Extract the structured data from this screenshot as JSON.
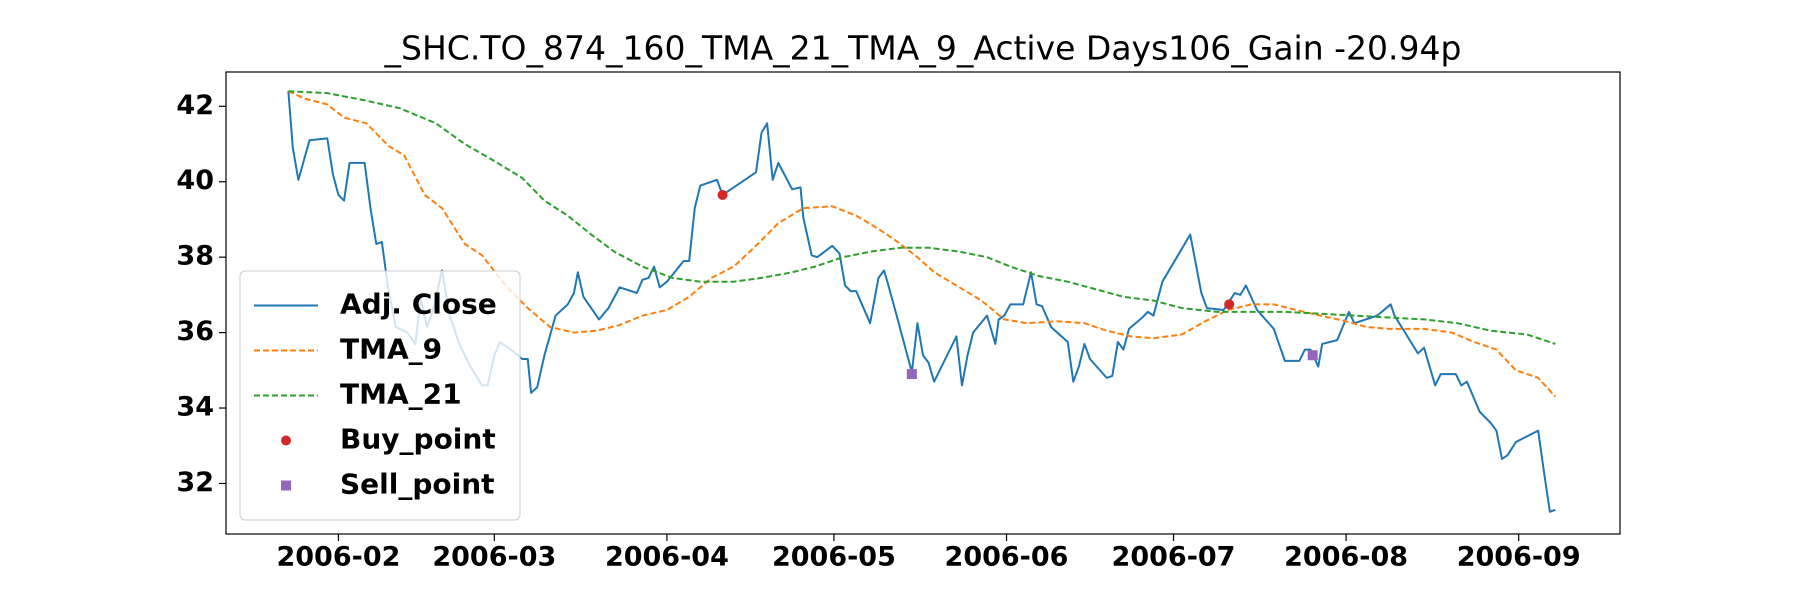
{
  "chart_data": {
    "type": "line",
    "title": "_SHC.TO_874_160_TMA_21_TMA_9_Active Days106_Gain -20.94p",
    "xlim": [
      10.8,
      261.2
    ],
    "ylim": [
      30.66,
      42.91
    ],
    "xticks": [
      {
        "value": 31,
        "label": "2006-02"
      },
      {
        "value": 59,
        "label": "2006-03"
      },
      {
        "value": 90,
        "label": "2006-04"
      },
      {
        "value": 120,
        "label": "2006-05"
      },
      {
        "value": 151,
        "label": "2006-06"
      },
      {
        "value": 181,
        "label": "2006-07"
      },
      {
        "value": 212,
        "label": "2006-08"
      },
      {
        "value": 243,
        "label": "2006-09"
      }
    ],
    "yticks": [
      32,
      34,
      36,
      38,
      40,
      42
    ],
    "grid": false,
    "legend_loc": "lower left",
    "series": [
      {
        "name": "Adj. Close",
        "color": "#1f77b4",
        "style": "solid",
        "x": [
          22,
          22.8,
          23.8,
          25.8,
          29,
          30,
          31,
          32,
          33,
          35.7,
          36.8,
          37.8,
          38.8,
          39.9,
          41.3,
          43.4,
          44.8,
          45.8,
          46.9,
          48,
          49.6,
          51,
          52.7,
          54.7,
          56.8,
          57.8,
          59,
          60,
          62,
          64,
          65,
          65.6,
          66.7,
          68,
          70,
          72.2,
          73.3,
          74,
          75,
          76.4,
          77.8,
          79.5,
          81.5,
          84.6,
          85.6,
          86.7,
          87.7,
          88.7,
          90,
          93,
          94,
          95,
          96,
          99,
          100,
          106,
          107,
          108,
          109,
          110,
          112.5,
          114,
          114.5,
          116,
          117,
          119.7,
          121,
          122,
          123,
          124,
          126.5,
          128,
          129,
          129.6,
          131,
          134,
          135,
          136,
          137,
          138,
          142,
          143,
          144,
          145,
          147.5,
          149,
          149.6,
          150.6,
          151.7,
          154,
          155.4,
          156.4,
          157.4,
          159,
          162,
          163,
          164,
          165,
          166,
          169,
          170,
          171,
          172,
          173,
          175.4,
          176.4,
          177.4,
          179,
          184,
          186,
          187,
          190,
          192,
          193,
          194,
          196,
          199,
          201,
          203.6,
          204.6,
          205.6,
          207,
          207.7,
          210.4,
          212.5,
          213.5,
          217.6,
          220,
          220.7,
          224.9,
          226,
          228,
          229,
          231.7,
          232.7,
          233.7,
          236,
          238,
          239,
          240,
          241,
          242.5,
          246.5,
          247.5,
          248.6,
          249.6
        ],
        "values": [
          42.4,
          40.9,
          40.05,
          41.1,
          41.15,
          40.2,
          39.65,
          39.5,
          40.5,
          40.5,
          39.25,
          38.35,
          38.4,
          37.2,
          36.15,
          36.0,
          35.7,
          36.9,
          36.15,
          36.6,
          37.65,
          36.45,
          35.7,
          35.1,
          34.6,
          34.6,
          35.4,
          35.75,
          35.55,
          35.3,
          35.3,
          34.4,
          34.55,
          35.4,
          36.45,
          36.75,
          37.05,
          37.6,
          36.95,
          36.65,
          36.35,
          36.65,
          37.2,
          37.05,
          37.4,
          37.45,
          37.75,
          37.2,
          37.35,
          37.9,
          37.9,
          39.3,
          39.9,
          40.05,
          39.65,
          40.25,
          41.3,
          41.55,
          40.05,
          40.5,
          39.8,
          39.85,
          39.05,
          38.05,
          38.0,
          38.3,
          38.1,
          37.25,
          37.1,
          37.1,
          36.25,
          37.45,
          37.65,
          37.35,
          36.6,
          34.95,
          36.25,
          35.4,
          35.2,
          34.7,
          35.9,
          34.6,
          35.4,
          36.0,
          36.45,
          35.7,
          36.35,
          36.45,
          36.75,
          36.75,
          37.6,
          36.75,
          36.7,
          36.15,
          35.75,
          34.7,
          35.1,
          35.7,
          35.3,
          34.8,
          34.85,
          35.75,
          35.55,
          36.1,
          36.4,
          36.55,
          36.45,
          37.35,
          38.6,
          37.05,
          36.65,
          36.6,
          37.05,
          37.0,
          37.25,
          36.6,
          36.1,
          35.25,
          35.25,
          35.55,
          35.55,
          35.1,
          35.7,
          35.8,
          36.55,
          36.25,
          36.45,
          36.75,
          36.45,
          35.45,
          35.6,
          34.6,
          34.9,
          34.9,
          34.6,
          34.7,
          33.9,
          33.6,
          33.4,
          32.65,
          32.75,
          33.1,
          33.4,
          32.35,
          31.25,
          31.3
        ]
      },
      {
        "name": "TMA_9",
        "color": "#ff7f0e",
        "style": "dashed",
        "x": [
          22,
          25,
          29,
          32,
          36,
          40,
          42.8,
          46.5,
          49.6,
          53.7,
          56.8,
          61,
          65,
          69,
          73.3,
          77.4,
          81.5,
          85.6,
          90,
          94,
          98,
          102,
          106,
          110,
          114.5,
          119.7,
          124,
          128,
          131,
          135,
          138,
          142,
          146.5,
          150.6,
          154.7,
          160,
          165,
          169,
          173.3,
          177.4,
          182.5,
          186.7,
          190.8,
          195,
          199,
          203,
          207.4,
          212,
          215.6,
          219.7,
          226,
          231,
          235,
          239,
          242.5,
          246.5,
          249.6
        ],
        "values": [
          42.4,
          42.2,
          42.05,
          41.7,
          41.55,
          40.95,
          40.7,
          39.65,
          39.3,
          38.35,
          38.05,
          37.25,
          36.65,
          36.15,
          36.0,
          36.05,
          36.2,
          36.45,
          36.6,
          36.95,
          37.45,
          37.75,
          38.3,
          38.9,
          39.3,
          39.35,
          39.1,
          38.75,
          38.45,
          38.0,
          37.6,
          37.25,
          36.85,
          36.35,
          36.25,
          36.3,
          36.25,
          36.05,
          35.9,
          35.85,
          35.95,
          36.3,
          36.6,
          36.75,
          36.75,
          36.6,
          36.45,
          36.3,
          36.15,
          36.1,
          36.1,
          36.0,
          35.75,
          35.55,
          35.0,
          34.8,
          34.3
        ]
      },
      {
        "name": "TMA_21",
        "color": "#2ca02c",
        "style": "dashed",
        "x": [
          22,
          29,
          36,
          42,
          48.5,
          53.7,
          59,
          64,
          68,
          72.2,
          76.4,
          80.5,
          85.6,
          91,
          96,
          102,
          107,
          112.5,
          116.6,
          121.6,
          126.7,
          132,
          137,
          142.4,
          147.5,
          151.7,
          156.8,
          162,
          167,
          172,
          177.4,
          182.5,
          188.8,
          195,
          201,
          207.4,
          213.5,
          219.7,
          226,
          232,
          238,
          244.5,
          249.6
        ],
        "values": [
          42.4,
          42.35,
          42.15,
          41.95,
          41.55,
          41.0,
          40.55,
          40.1,
          39.5,
          39.1,
          38.6,
          38.15,
          37.75,
          37.45,
          37.35,
          37.35,
          37.45,
          37.6,
          37.75,
          38.0,
          38.15,
          38.25,
          38.25,
          38.15,
          38.0,
          37.75,
          37.5,
          37.35,
          37.15,
          36.95,
          36.85,
          36.65,
          36.55,
          36.55,
          36.55,
          36.5,
          36.45,
          36.4,
          36.35,
          36.25,
          36.05,
          35.95,
          35.7
        ]
      },
      {
        "name": "Buy_point",
        "color": "#d62728",
        "style": "marker",
        "marker": "circle",
        "x": [
          100,
          191
        ],
        "values": [
          39.65,
          36.75
        ]
      },
      {
        "name": "Sell_point",
        "color": "#9467bd",
        "style": "marker",
        "marker": "square",
        "x": [
          134,
          206
        ],
        "values": [
          34.9,
          35.4
        ]
      }
    ]
  }
}
